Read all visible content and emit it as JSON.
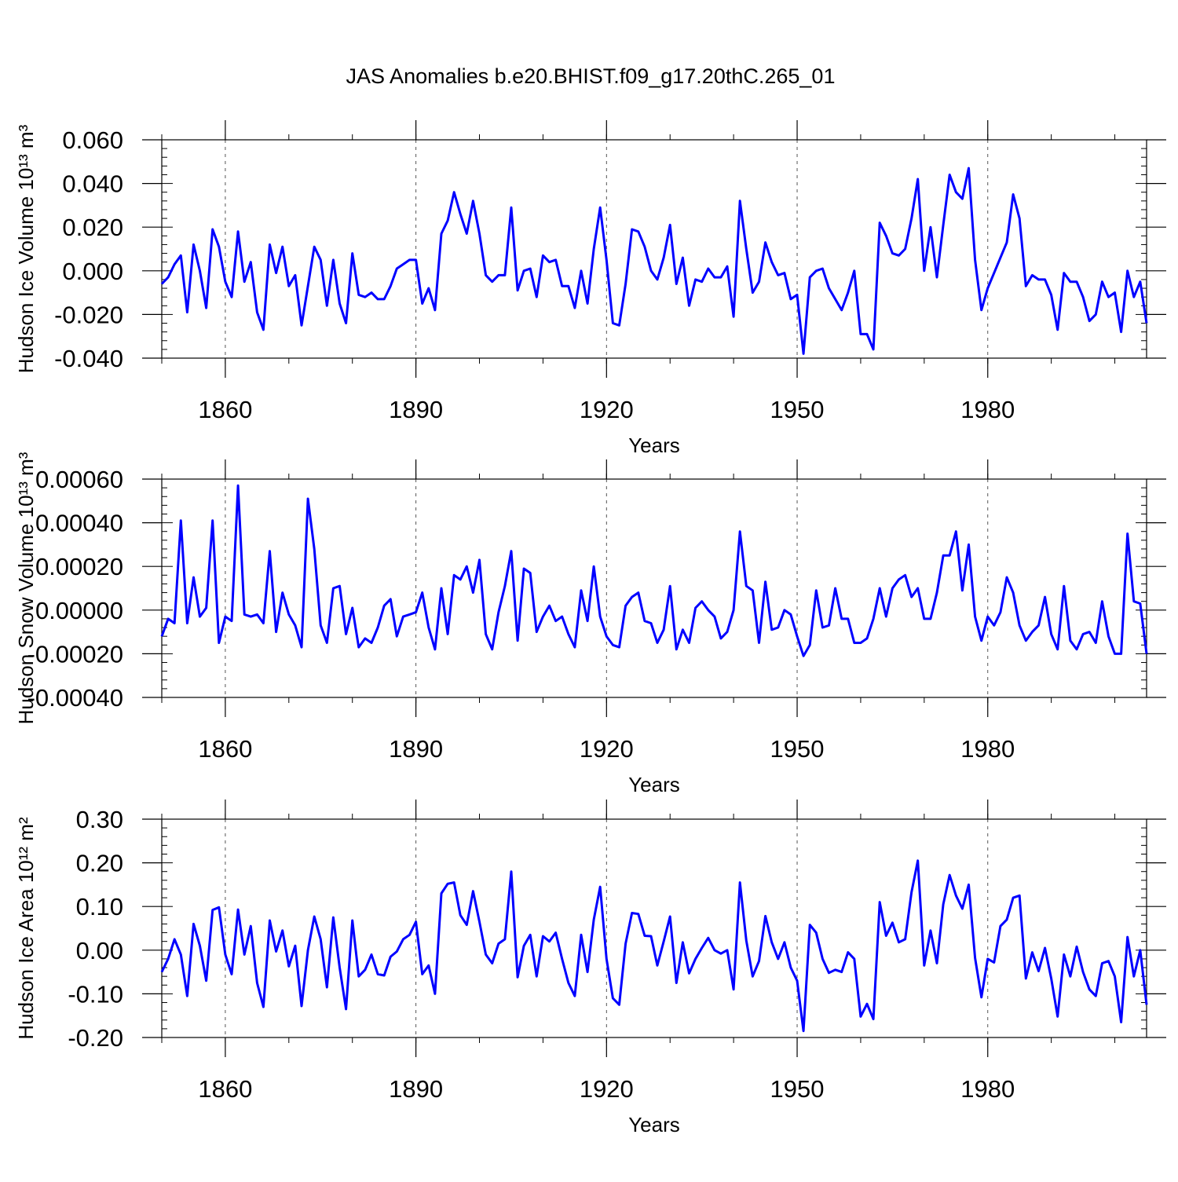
{
  "figure_title": "JAS Anomalies b.e20.BHIST.f09_g17.20thC.265_01",
  "style": {
    "line_color": "#0000ff",
    "axis_color": "#000000",
    "grid_color": "#555555"
  },
  "chart_data": [
    {
      "type": "line",
      "title": "JAS Anomalies b.e20.BHIST.f09_g17.20thC.265_01",
      "ylabel": "Hudson Ice Volume 10¹³ m³",
      "xlabel": "Years",
      "xlim": [
        1850,
        2005
      ],
      "ylim": [
        -0.04,
        0.06
      ],
      "yticks": [
        -0.04,
        -0.02,
        0.0,
        0.02,
        0.04,
        0.06
      ],
      "ytick_labels": [
        "-0.040",
        "-0.020",
        "0.000",
        "0.020",
        "0.040",
        "0.060"
      ],
      "xticks": [
        1860,
        1890,
        1920,
        1950,
        1980
      ],
      "xtick_labels": [
        "1860",
        "1890",
        "1920",
        "1950",
        "1980"
      ],
      "grid": "vertical dashed at major x ticks",
      "series": [
        {
          "name": "Hudson Ice Volume",
          "x_start": 1850,
          "values": [
            -0.006,
            -0.003,
            0.003,
            0.007,
            -0.019,
            0.012,
            0.0,
            -0.017,
            0.019,
            0.011,
            -0.005,
            -0.012,
            0.018,
            -0.005,
            0.004,
            -0.019,
            -0.027,
            0.012,
            -0.001,
            0.011,
            -0.007,
            -0.002,
            -0.025,
            -0.007,
            0.011,
            0.005,
            -0.016,
            0.005,
            -0.015,
            -0.024,
            0.008,
            -0.011,
            -0.012,
            -0.01,
            -0.013,
            -0.013,
            -0.007,
            0.001,
            0.003,
            0.005,
            0.005,
            -0.015,
            -0.008,
            -0.018,
            0.017,
            0.023,
            0.036,
            0.026,
            0.017,
            0.032,
            0.017,
            -0.002,
            -0.005,
            -0.002,
            -0.002,
            0.029,
            -0.009,
            0.0,
            0.001,
            -0.012,
            0.007,
            0.004,
            0.005,
            -0.007,
            -0.007,
            -0.017,
            0.0,
            -0.015,
            0.01,
            0.029,
            0.005,
            -0.024,
            -0.025,
            -0.006,
            0.019,
            0.018,
            0.011,
            0.0,
            -0.004,
            0.006,
            0.021,
            -0.006,
            0.006,
            -0.016,
            -0.004,
            -0.005,
            0.001,
            -0.003,
            -0.003,
            0.002,
            -0.021,
            0.032,
            0.01,
            -0.01,
            -0.005,
            0.013,
            0.004,
            -0.002,
            -0.001,
            -0.013,
            -0.011,
            -0.038,
            -0.003,
            0.0,
            0.001,
            -0.008,
            -0.013,
            -0.018,
            -0.01,
            0.0,
            -0.029,
            -0.029,
            -0.036,
            0.022,
            0.016,
            0.008,
            0.007,
            0.01,
            0.024,
            0.042,
            0.0,
            0.02,
            -0.003,
            0.021,
            0.044,
            0.036,
            0.033,
            0.047,
            0.005,
            -0.018,
            -0.008,
            -0.001,
            0.006,
            0.013,
            0.035,
            0.024,
            -0.007,
            -0.002,
            -0.004,
            -0.004,
            -0.011,
            -0.027,
            -0.001,
            -0.005,
            -0.005,
            -0.012,
            -0.023,
            -0.02,
            -0.005,
            -0.012,
            -0.01,
            -0.028,
            0.0,
            -0.012,
            -0.005,
            -0.024
          ]
        }
      ]
    },
    {
      "type": "line",
      "ylabel": "Hudson Snow Volume 10¹³ m³",
      "xlabel": "Years",
      "xlim": [
        1850,
        2005
      ],
      "ylim": [
        -0.0004,
        0.0006
      ],
      "yticks": [
        -0.0004,
        -0.0002,
        0.0,
        0.0002,
        0.0004,
        0.0006
      ],
      "ytick_labels": [
        "-0.00040",
        "-0.00020",
        "0.00000",
        "0.00020",
        "0.00040",
        "0.00060"
      ],
      "xticks": [
        1860,
        1890,
        1920,
        1950,
        1980
      ],
      "xtick_labels": [
        "1860",
        "1890",
        "1920",
        "1950",
        "1980"
      ],
      "grid": "vertical dashed at major x ticks",
      "series": [
        {
          "name": "Hudson Snow Volume",
          "x_start": 1850,
          "values": [
            -0.00012,
            -4e-05,
            -6e-05,
            0.00041,
            -6e-05,
            0.00015,
            -3e-05,
            1e-05,
            0.00041,
            -0.00015,
            -3e-05,
            -5e-05,
            0.00057,
            -2e-05,
            -3e-05,
            -2e-05,
            -6e-05,
            0.00027,
            -0.0001,
            8e-05,
            -2e-05,
            -7e-05,
            -0.00017,
            0.00051,
            0.00028,
            -7e-05,
            -0.00015,
            0.0001,
            0.00011,
            -0.00011,
            1e-05,
            -0.00017,
            -0.00013,
            -0.00015,
            -8e-05,
            2e-05,
            5e-05,
            -0.00012,
            -3e-05,
            -2e-05,
            -1e-05,
            8e-05,
            -8e-05,
            -0.00018,
            0.0001,
            -0.00011,
            0.00016,
            0.00014,
            0.0002,
            8e-05,
            0.00023,
            -0.00011,
            -0.00018,
            -1e-05,
            0.00011,
            0.00027,
            -0.00014,
            0.00019,
            0.00017,
            -0.0001,
            -3e-05,
            2e-05,
            -5e-05,
            -3e-05,
            -0.00011,
            -0.00017,
            9e-05,
            -5e-05,
            0.0002,
            -3e-05,
            -0.00012,
            -0.00016,
            -0.00017,
            2e-05,
            6e-05,
            8e-05,
            -5e-05,
            -6e-05,
            -0.00015,
            -9e-05,
            0.00011,
            -0.00018,
            -9e-05,
            -0.00015,
            1e-05,
            4e-05,
            0.0,
            -3e-05,
            -0.00013,
            -0.0001,
            0.0,
            0.00036,
            0.00011,
            9e-05,
            -0.00015,
            0.00013,
            -9e-05,
            -8e-05,
            0.0,
            -2e-05,
            -0.00012,
            -0.00021,
            -0.00016,
            9e-05,
            -8e-05,
            -7e-05,
            0.0001,
            -4e-05,
            -4e-05,
            -0.00015,
            -0.00015,
            -0.00013,
            -4e-05,
            0.0001,
            -3e-05,
            0.0001,
            0.00014,
            0.00016,
            6e-05,
            0.0001,
            -4e-05,
            -4e-05,
            8e-05,
            0.00025,
            0.00025,
            0.00036,
            9e-05,
            0.0003,
            -3e-05,
            -0.00014,
            -3e-05,
            -7e-05,
            -1e-05,
            0.00015,
            8e-05,
            -7e-05,
            -0.00014,
            -0.0001,
            -7e-05,
            6e-05,
            -0.00011,
            -0.00018,
            0.00011,
            -0.00014,
            -0.00018,
            -0.00011,
            -0.0001,
            -0.00015,
            4e-05,
            -0.00012,
            -0.0002,
            -0.0002,
            0.00035,
            4e-05,
            3e-05,
            -0.0002
          ]
        }
      ]
    },
    {
      "type": "line",
      "ylabel": "Hudson Ice Area 10¹² m²",
      "xlabel": "Years",
      "xlim": [
        1850,
        2005
      ],
      "ylim": [
        -0.2,
        0.3
      ],
      "yticks": [
        -0.2,
        -0.1,
        0.0,
        0.1,
        0.2,
        0.3
      ],
      "ytick_labels": [
        "-0.20",
        "-0.10",
        "0.00",
        "0.10",
        "0.20",
        "0.30"
      ],
      "xticks": [
        1860,
        1890,
        1920,
        1950,
        1980
      ],
      "xtick_labels": [
        "1860",
        "1890",
        "1920",
        "1950",
        "1980"
      ],
      "grid": "vertical dashed at major x ticks",
      "series": [
        {
          "name": "Hudson Ice Area",
          "x_start": 1850,
          "values": [
            -0.05,
            -0.02,
            0.025,
            -0.01,
            -0.105,
            0.06,
            0.01,
            -0.07,
            0.092,
            0.098,
            -0.01,
            -0.055,
            0.093,
            -0.01,
            0.055,
            -0.075,
            -0.13,
            0.068,
            -0.003,
            0.045,
            -0.037,
            0.01,
            -0.128,
            0.0,
            0.077,
            0.025,
            -0.085,
            0.075,
            -0.04,
            -0.135,
            0.068,
            -0.06,
            -0.045,
            -0.01,
            -0.055,
            -0.058,
            -0.015,
            -0.003,
            0.025,
            0.035,
            0.065,
            -0.055,
            -0.035,
            -0.1,
            0.13,
            0.152,
            0.155,
            0.08,
            0.058,
            0.135,
            0.065,
            -0.01,
            -0.03,
            0.015,
            0.025,
            0.18,
            -0.062,
            0.01,
            0.035,
            -0.06,
            0.032,
            0.02,
            0.04,
            -0.02,
            -0.075,
            -0.105,
            0.035,
            -0.05,
            0.07,
            0.145,
            -0.02,
            -0.11,
            -0.125,
            0.015,
            0.085,
            0.083,
            0.033,
            0.032,
            -0.035,
            0.02,
            0.077,
            -0.075,
            0.018,
            -0.053,
            -0.02,
            0.005,
            0.028,
            0.0,
            -0.008,
            0.0,
            -0.09,
            0.155,
            0.022,
            -0.06,
            -0.025,
            0.078,
            0.018,
            -0.02,
            0.018,
            -0.04,
            -0.07,
            -0.185,
            0.058,
            0.04,
            -0.02,
            -0.052,
            -0.045,
            -0.05,
            -0.005,
            -0.02,
            -0.152,
            -0.123,
            -0.158,
            0.11,
            0.033,
            0.063,
            0.018,
            0.025,
            0.133,
            0.205,
            -0.035,
            0.045,
            -0.03,
            0.105,
            0.172,
            0.125,
            0.095,
            0.15,
            -0.018,
            -0.108,
            -0.02,
            -0.028,
            0.055,
            0.07,
            0.12,
            0.125,
            -0.065,
            -0.005,
            -0.048,
            0.005,
            -0.065,
            -0.152,
            -0.01,
            -0.06,
            0.008,
            -0.05,
            -0.09,
            -0.105,
            -0.03,
            -0.025,
            -0.06,
            -0.165,
            0.03,
            -0.06,
            0.0,
            -0.125
          ]
        }
      ]
    }
  ]
}
